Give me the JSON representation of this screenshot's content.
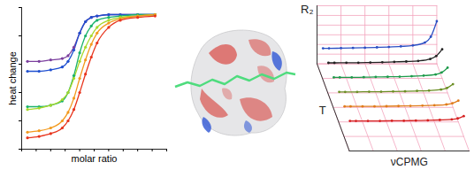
{
  "chart_data": [
    {
      "type": "line",
      "xlabel": "molar ratio",
      "ylabel": "heat change",
      "x": [
        0.1,
        0.3,
        0.5,
        0.7,
        0.8,
        0.9,
        1.0,
        1.1,
        1.2,
        1.3,
        1.5,
        1.7,
        2.0,
        2.3
      ],
      "series": [
        {
          "color": "#7b3f9e",
          "values": [
            0.62,
            0.62,
            0.63,
            0.64,
            0.66,
            0.72,
            0.82,
            0.9,
            0.93,
            0.94,
            0.95,
            0.95,
            0.95,
            0.95
          ]
        },
        {
          "color": "#1f4fd0",
          "values": [
            0.55,
            0.55,
            0.56,
            0.58,
            0.62,
            0.7,
            0.82,
            0.9,
            0.93,
            0.94,
            0.95,
            0.95,
            0.95,
            0.95
          ]
        },
        {
          "color": "#1ab26b",
          "values": [
            0.3,
            0.3,
            0.31,
            0.34,
            0.4,
            0.52,
            0.68,
            0.8,
            0.87,
            0.91,
            0.93,
            0.94,
            0.95,
            0.95
          ]
        },
        {
          "color": "#a8d82a",
          "values": [
            0.28,
            0.29,
            0.31,
            0.35,
            0.4,
            0.5,
            0.62,
            0.72,
            0.8,
            0.86,
            0.91,
            0.93,
            0.94,
            0.95
          ]
        },
        {
          "color": "#f39a1e",
          "values": [
            0.12,
            0.13,
            0.15,
            0.2,
            0.26,
            0.36,
            0.5,
            0.63,
            0.74,
            0.82,
            0.89,
            0.92,
            0.94,
            0.95
          ]
        },
        {
          "color": "#e8341c",
          "values": [
            0.08,
            0.09,
            0.11,
            0.15,
            0.2,
            0.28,
            0.4,
            0.53,
            0.65,
            0.75,
            0.86,
            0.91,
            0.93,
            0.94
          ]
        }
      ],
      "marker": "circle",
      "xlim": [
        0,
        2.5
      ],
      "xticks": [
        0,
        0.25,
        0.5,
        0.75,
        1,
        1.25,
        1.5,
        1.75,
        2,
        2.25,
        2.5
      ],
      "ylim": [
        0,
        1
      ],
      "yticks": [
        0,
        0.2,
        0.4,
        0.6,
        0.8,
        1
      ],
      "grid": false,
      "tick_labels": false
    },
    {
      "type": "line",
      "xlabel": "νCPMG",
      "ylabel": "R₂",
      "zlabel": "T",
      "x": [
        50,
        100,
        200,
        300,
        400,
        500,
        600,
        700,
        800,
        900,
        950,
        1000
      ],
      "series": [
        {
          "color": "#2b4fc4",
          "t": 6,
          "values": [
            8,
            8,
            8.1,
            8.2,
            8.3,
            8.5,
            8.7,
            9,
            9.5,
            11,
            14,
            22
          ]
        },
        {
          "color": "#222222",
          "t": 5,
          "values": [
            8,
            8,
            8.1,
            8.1,
            8.2,
            8.3,
            8.5,
            8.7,
            9,
            10,
            11.5,
            15
          ]
        },
        {
          "color": "#1d9a4a",
          "t": 4,
          "values": [
            8,
            8,
            8,
            8.1,
            8.2,
            8.3,
            8.4,
            8.6,
            8.9,
            9.5,
            10.5,
            13
          ]
        },
        {
          "color": "#6b8e23",
          "t": 3,
          "values": [
            8,
            8,
            8,
            8.1,
            8.1,
            8.2,
            8.3,
            8.5,
            8.7,
            9.2,
            10,
            12
          ]
        },
        {
          "color": "#e07b1a",
          "t": 2,
          "values": [
            8,
            8,
            8,
            8,
            8.1,
            8.2,
            8.3,
            8.4,
            8.6,
            9,
            9.6,
            11
          ]
        },
        {
          "color": "#d62020",
          "t": 1,
          "values": [
            8,
            8,
            8,
            8,
            8.1,
            8.1,
            8.2,
            8.3,
            8.5,
            8.8,
            9.3,
            10.5
          ]
        }
      ],
      "marker": "circle",
      "xlim": [
        0,
        1000
      ],
      "xticks": [
        0,
        200,
        400,
        600,
        800,
        1000
      ],
      "ylim": [
        0,
        30
      ],
      "yticks": [
        0,
        5,
        10,
        15,
        20,
        25,
        30
      ],
      "grid": true,
      "tick_labels": false
    }
  ]
}
